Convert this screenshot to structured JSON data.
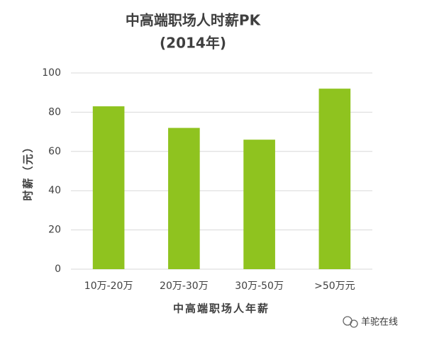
{
  "chart_data": {
    "type": "bar",
    "title": "中高端职场人时薪PK",
    "subtitle": "(2014年)",
    "y_label": "时薪（元）",
    "x_label": "中高端职场人年薪",
    "categories": [
      "10万-20万",
      "20万-30万",
      "30万-50万",
      ">50万元"
    ],
    "values": [
      83,
      72,
      66,
      92
    ],
    "color": "#8fc31f",
    "ylim": [
      0,
      100
    ],
    "yticks": [
      0,
      20,
      40,
      60,
      80,
      100
    ],
    "grid": true
  },
  "watermark": "羊驼在线"
}
